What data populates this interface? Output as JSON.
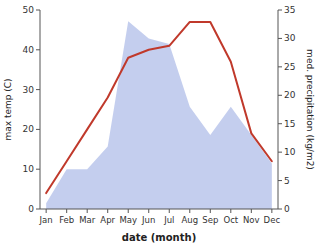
{
  "chart_data": {
    "type": "line",
    "categories": [
      "Jan",
      "Feb",
      "Mar",
      "Apr",
      "May",
      "Jun",
      "Jul",
      "Aug",
      "Sep",
      "Oct",
      "Nov",
      "Dec"
    ],
    "xlabel": "date (month)",
    "ylabel": "max temp (C)",
    "y2label": "med. precipitation (kg/m2)",
    "ylim": [
      0,
      50
    ],
    "yticks": [
      0,
      10,
      20,
      30,
      40,
      50
    ],
    "y2lim": [
      0,
      35
    ],
    "y2ticks": [
      0,
      5,
      10,
      15,
      20,
      25,
      30,
      35
    ],
    "series": [
      {
        "type": "area",
        "axis": "y2",
        "color": "#b0bee8",
        "values": [
          1,
          7,
          7,
          11,
          33,
          30,
          29,
          18,
          13,
          18,
          13,
          8
        ]
      },
      {
        "type": "line",
        "color": "#c0392b",
        "values": [
          4,
          12,
          20,
          28,
          38,
          40,
          41,
          47,
          47,
          37,
          19,
          12
        ]
      }
    ]
  }
}
